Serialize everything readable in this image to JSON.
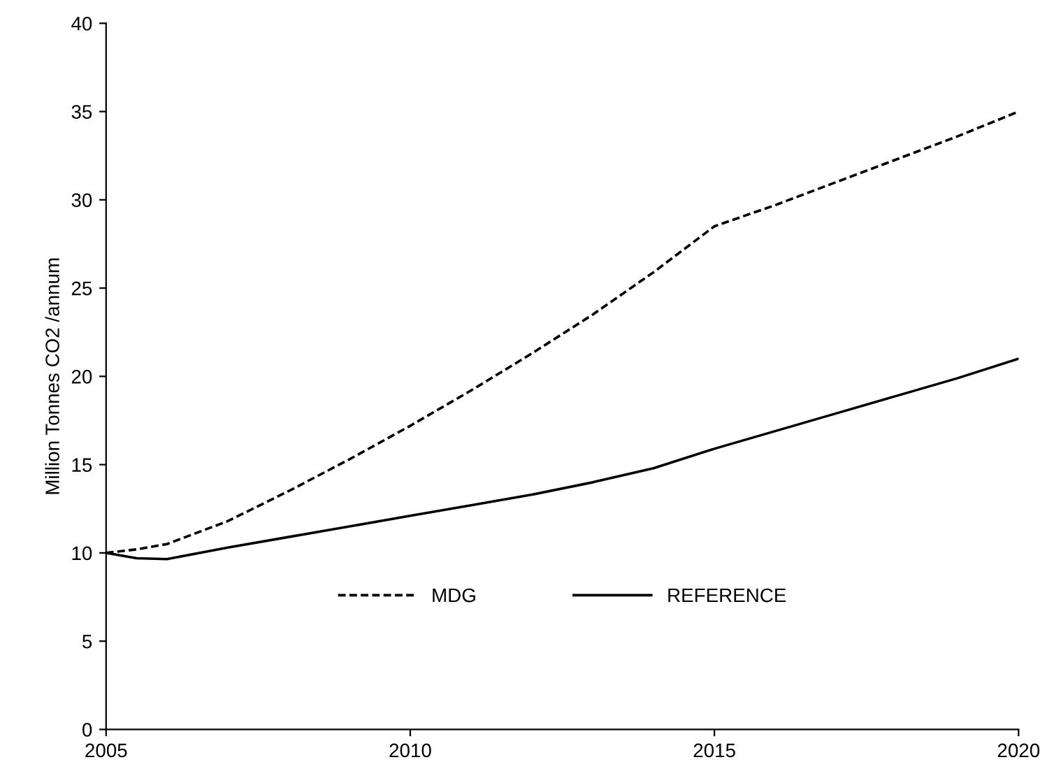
{
  "chart_data": {
    "type": "line",
    "ylabel": "Million Tonnes CO2 /annum",
    "x": [
      2005,
      2005.5,
      2006,
      2007,
      2008,
      2009,
      2010,
      2011,
      2012,
      2013,
      2014,
      2015,
      2016,
      2017,
      2018,
      2019,
      2020
    ],
    "series": [
      {
        "name": "MDG",
        "color": "#000000",
        "line_style": "dashed",
        "values": [
          10,
          10.2,
          10.5,
          11.8,
          13.5,
          15.3,
          17.2,
          19.2,
          21.3,
          23.5,
          25.9,
          28.5,
          29.7,
          31.0,
          32.3,
          33.6,
          35.0
        ]
      },
      {
        "name": "REFERENCE",
        "color": "#000000",
        "line_style": "solid",
        "values": [
          10,
          9.7,
          9.65,
          10.3,
          10.9,
          11.5,
          12.1,
          12.7,
          13.3,
          14.0,
          14.8,
          15.9,
          16.9,
          17.9,
          18.9,
          19.9,
          21.0
        ]
      }
    ],
    "xlim": [
      2005,
      2020
    ],
    "xticks": [
      2005,
      2010,
      2015,
      2020
    ],
    "ylim": [
      0,
      40
    ],
    "yticks": [
      0,
      5,
      10,
      15,
      20,
      25,
      30,
      35,
      40
    ],
    "grid": false,
    "legend": "bottom",
    "marker": "none"
  }
}
